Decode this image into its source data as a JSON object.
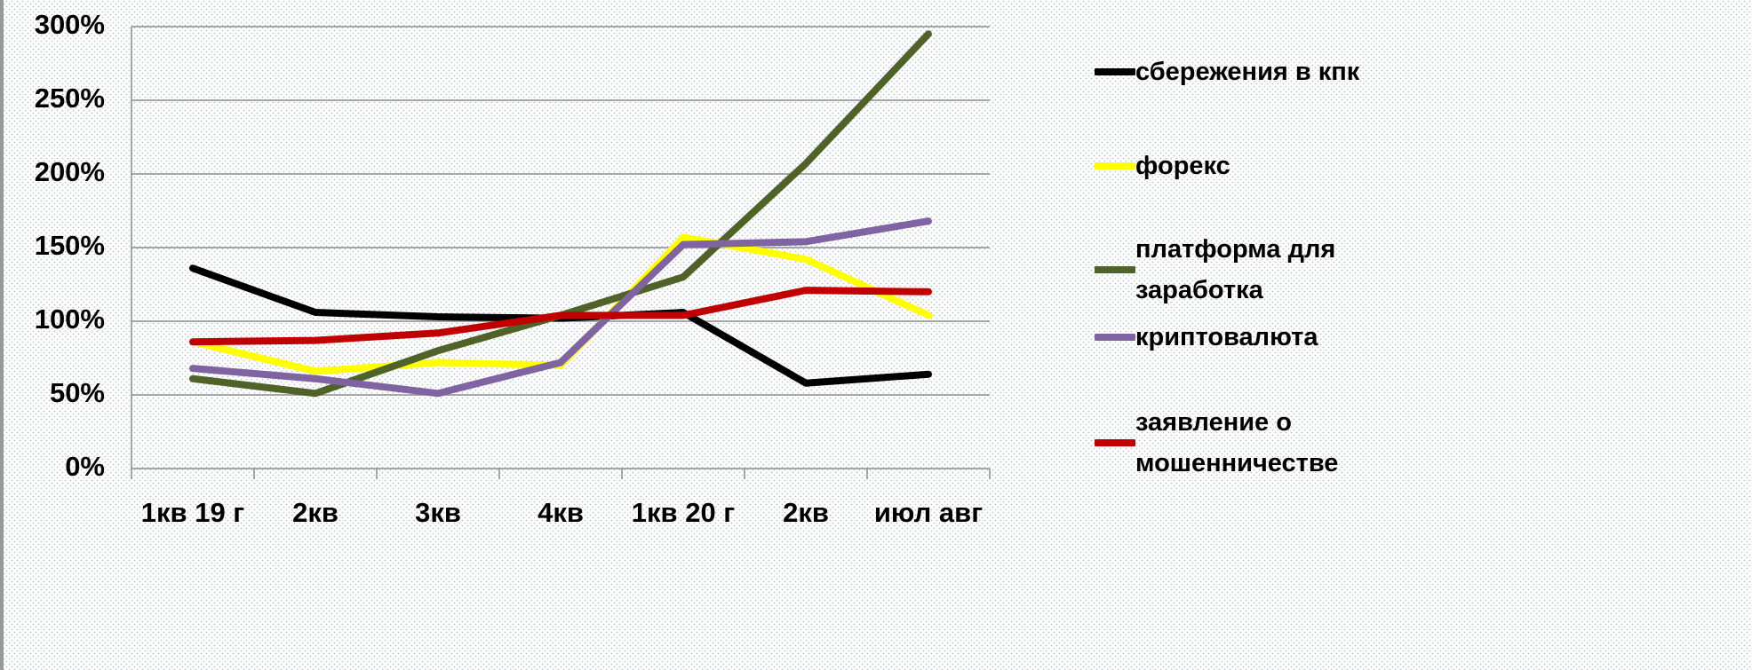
{
  "chart_data": {
    "type": "line",
    "categories": [
      "1кв 19 г",
      "2кв",
      "3кв",
      "4кв",
      "1кв 20 г",
      "2кв",
      "июл авг"
    ],
    "series": [
      {
        "name": "сбережения в кпк",
        "color": "#000000",
        "values": [
          136,
          106,
          103,
          102,
          106,
          58,
          64
        ]
      },
      {
        "name": "форекс",
        "color": "#ffff00",
        "values": [
          86,
          66,
          72,
          70,
          157,
          142,
          104
        ]
      },
      {
        "name": "платформа для заработка",
        "color": "#4f6228",
        "values": [
          61,
          51,
          80,
          104,
          130,
          207,
          295
        ]
      },
      {
        "name": "криптовалюта",
        "color": "#8064a2",
        "values": [
          68,
          61,
          51,
          72,
          152,
          154,
          168
        ]
      },
      {
        "name": "заявление о мошенничестве",
        "color": "#c00000",
        "values": [
          86,
          87,
          92,
          104,
          104,
          121,
          120
        ]
      }
    ],
    "ylim": [
      0,
      300
    ],
    "yticks": [
      {
        "value": 0,
        "label": "0%"
      },
      {
        "value": 50,
        "label": "50%"
      },
      {
        "value": 100,
        "label": "100%"
      },
      {
        "value": 150,
        "label": "150%"
      },
      {
        "value": 200,
        "label": "200%"
      },
      {
        "value": 250,
        "label": "250%"
      },
      {
        "value": 300,
        "label": "300%"
      }
    ],
    "grid": true
  }
}
